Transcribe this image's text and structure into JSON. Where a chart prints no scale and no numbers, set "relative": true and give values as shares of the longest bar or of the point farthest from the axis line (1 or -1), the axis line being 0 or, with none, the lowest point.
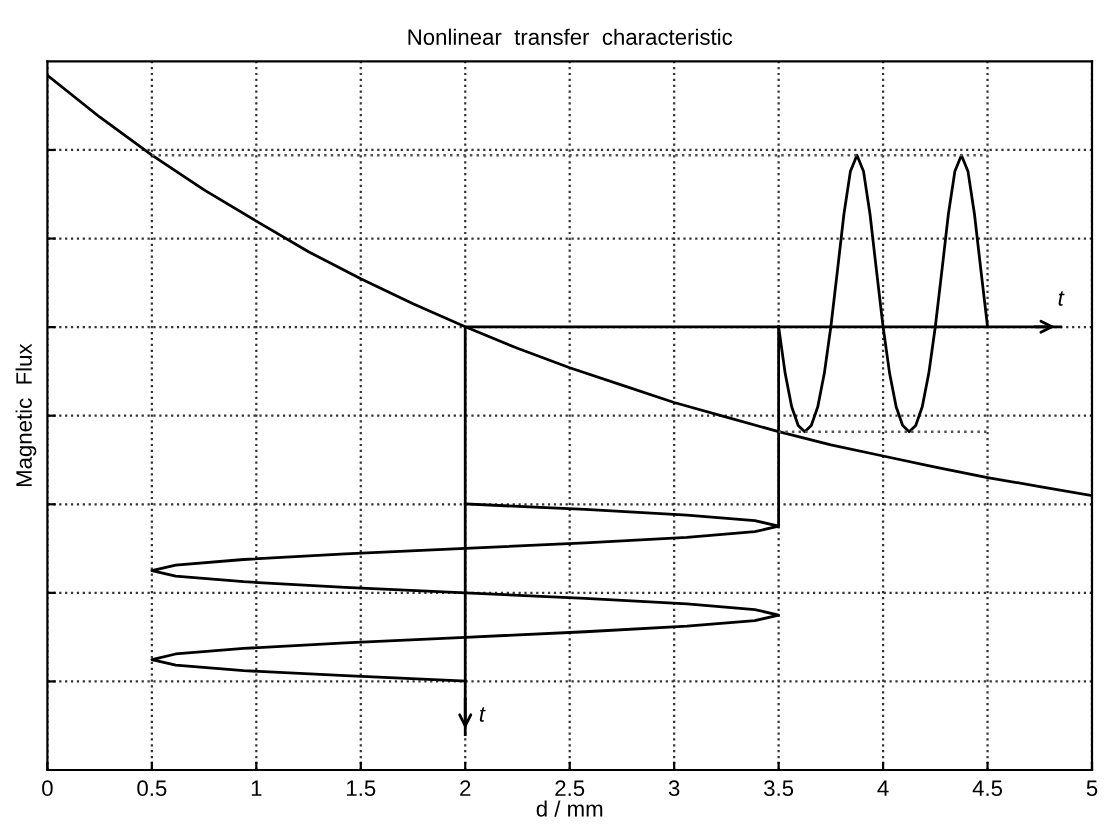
{
  "chart_data": {
    "type": "line",
    "title": "Nonlinear  transfer  characteristic",
    "xlabel": "d / mm",
    "ylabel": "Magnetic  Flux",
    "relative": true,
    "xlim": [
      0,
      5
    ],
    "xticks": [
      0,
      0.5,
      1,
      1.5,
      2,
      2.5,
      3,
      3.5,
      4,
      4.5,
      5
    ],
    "grid": true,
    "tick_labels": "x",
    "series": [
      {
        "color": "#000000",
        "x": [
          0,
          0.25,
          0.5,
          0.75,
          1,
          1.25,
          1.5,
          1.75,
          2,
          2.25,
          2.5,
          2.75,
          3,
          3.25,
          3.5,
          3.75,
          4,
          4.25,
          4.5,
          4.75,
          5
        ],
        "values": [
          1,
          0.94,
          0.885,
          0.835,
          0.79,
          0.746,
          0.707,
          0.671,
          0.638,
          0.607,
          0.579,
          0.554,
          0.529,
          0.508,
          0.487,
          0.468,
          0.452,
          0.436,
          0.421,
          0.408,
          0.395
        ]
      },
      {
        "color": "#000000",
        "x": [
          2,
          2.574,
          3.061,
          3.386,
          3.5,
          3.386,
          3.061,
          2.574,
          2,
          1.426,
          0.939,
          0.614,
          0.5,
          0.614,
          0.939,
          1.426,
          2,
          2.574,
          3.061,
          3.386,
          3.5,
          3.386,
          3.061,
          2.574,
          2,
          1.426,
          0.939,
          0.614,
          0.5,
          0.614,
          0.939,
          1.426,
          2
        ],
        "values": [
          0.383,
          0.375,
          0.367,
          0.359,
          0.351,
          0.343,
          0.335,
          0.327,
          0.319,
          0.311,
          0.303,
          0.295,
          0.287,
          0.279,
          0.271,
          0.263,
          0.255,
          0.247,
          0.239,
          0.231,
          0.223,
          0.215,
          0.207,
          0.199,
          0.191,
          0.183,
          0.175,
          0.167,
          0.159,
          0.151,
          0.143,
          0.136,
          0.128
        ]
      },
      {
        "color": "#000000",
        "x": [
          3.5,
          3.53125,
          3.5625,
          3.59375,
          3.625,
          3.65625,
          3.6875,
          3.71875,
          3.75,
          3.78125,
          3.8125,
          3.84375,
          3.875,
          3.90625,
          3.9375,
          3.96875,
          4,
          4.03125,
          4.0625,
          4.09375,
          4.125,
          4.15625,
          4.1875,
          4.21875,
          4.25,
          4.28125,
          4.3125,
          4.34375,
          4.375,
          4.40625,
          4.4375,
          4.46875,
          4.5
        ],
        "values": [
          0.638,
          0.571,
          0.523,
          0.496,
          0.487,
          0.496,
          0.523,
          0.571,
          0.638,
          0.718,
          0.8,
          0.862,
          0.885,
          0.862,
          0.8,
          0.718,
          0.638,
          0.571,
          0.523,
          0.496,
          0.487,
          0.496,
          0.523,
          0.571,
          0.638,
          0.718,
          0.8,
          0.862,
          0.885,
          0.862,
          0.8,
          0.718,
          0.638
        ]
      },
      {
        "color": "#000000",
        "x": [
          2,
          2,
          4.85
        ],
        "values": [
          0.051,
          0.638,
          0.638
        ]
      },
      {
        "color": "#000000",
        "x": [
          3.5,
          3.5
        ],
        "values": [
          0.638,
          0.351
        ]
      },
      {
        "color": "#555555",
        "line_style": "dotted",
        "x": [
          0.5,
          4.5
        ],
        "values": [
          0.885,
          0.885
        ]
      },
      {
        "color": "#555555",
        "line_style": "dotted",
        "x": [
          3.5,
          4.5
        ],
        "values": [
          0.487,
          0.487
        ]
      }
    ],
    "annotations": [
      {
        "text": "t",
        "x": 4.85,
        "y": 0.638
      },
      {
        "text": "t",
        "x": 2,
        "y": 0.051
      }
    ]
  }
}
